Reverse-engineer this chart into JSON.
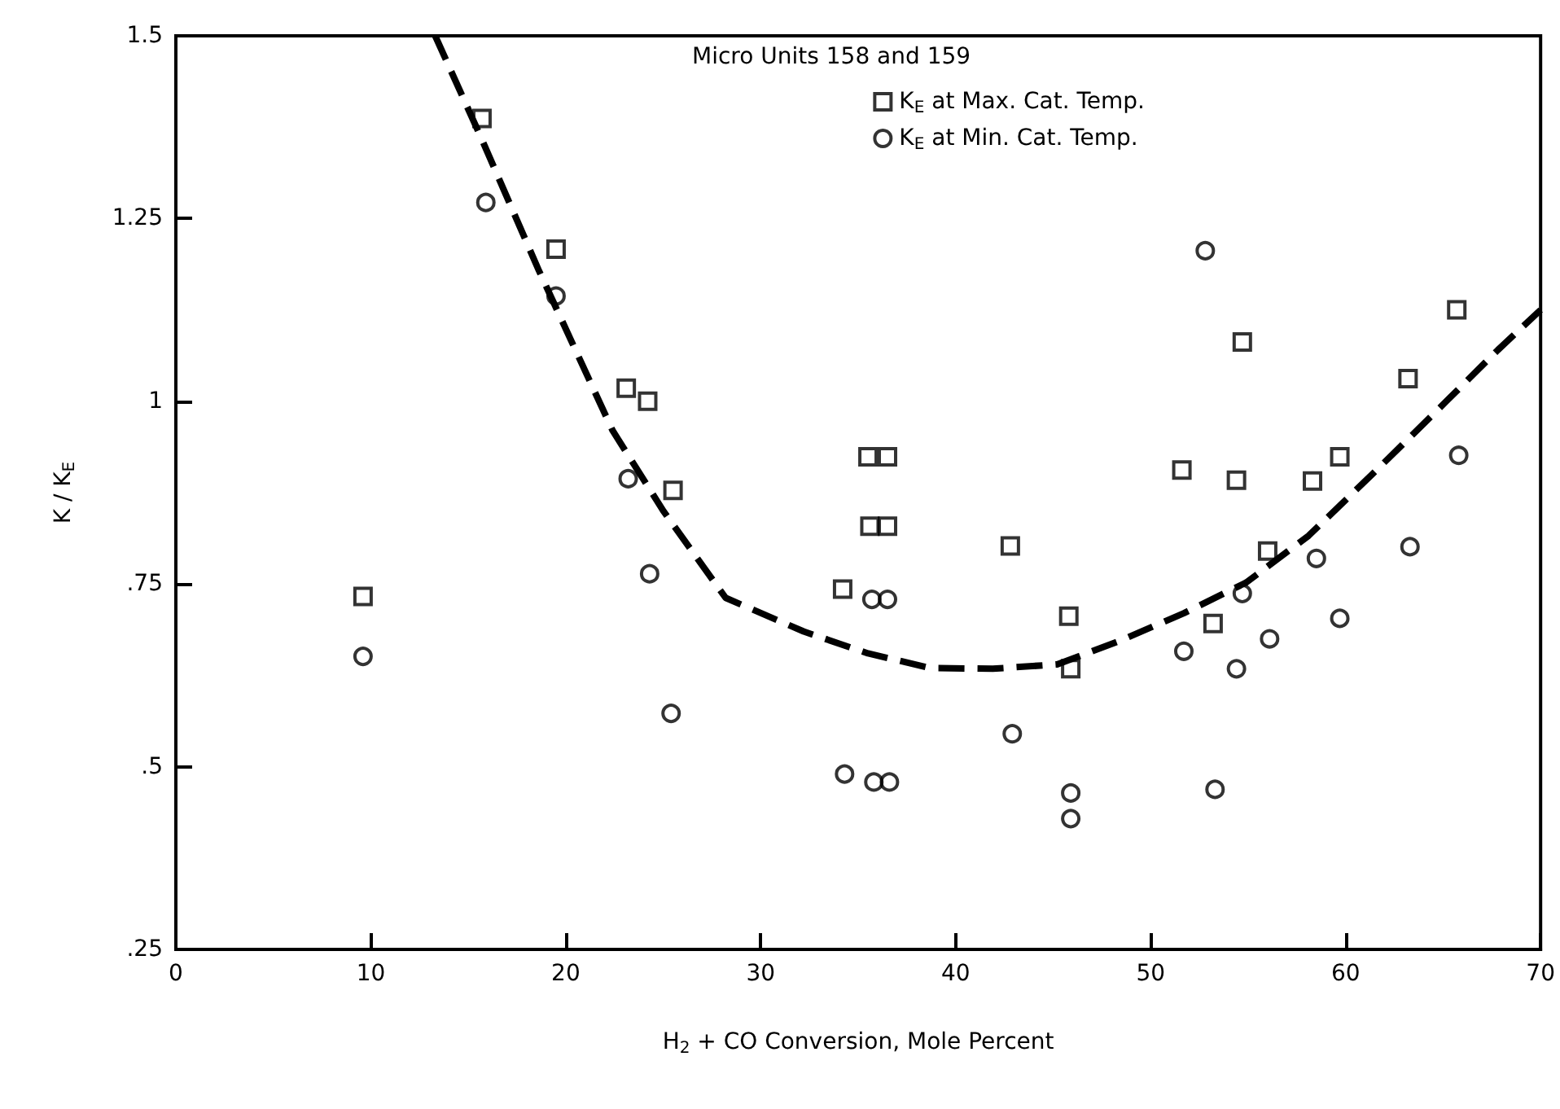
{
  "chart_data": {
    "type": "scatter",
    "xlabel": "H$_{2}$ + CO Conversion, Mole Percent",
    "ylabel": "K / K$_{E}$",
    "legend_title": "Micro Units 158 and 159",
    "xlim": [
      0,
      70
    ],
    "xticks": [
      0,
      10,
      20,
      30,
      40,
      50,
      60,
      70
    ],
    "ylim": [
      0.25,
      1.5
    ],
    "yticks": [
      {
        "value": 0.25,
        "label": ".25"
      },
      {
        "value": 0.5,
        "label": ".5"
      },
      {
        "value": 0.75,
        "label": ".75"
      },
      1,
      1.25,
      1.5
    ],
    "grid": false,
    "legend": "top right",
    "series": [
      {
        "name": "K$_{E}$ at Max. Cat. Temp.",
        "marker": "square",
        "color": "#000000",
        "x": [
          9.6,
          15.7,
          19.5,
          23.1,
          24.2,
          25.5,
          34.2,
          35.5,
          36.5,
          35.6,
          36.5,
          42.8,
          45.8,
          45.9,
          51.6,
          54.7,
          54.4,
          53.2,
          56.0,
          58.3,
          59.7,
          63.2,
          65.7
        ],
        "values": [
          0.733,
          1.387,
          1.208,
          1.018,
          1.0,
          0.878,
          0.743,
          0.924,
          0.924,
          0.829,
          0.829,
          0.802,
          0.706,
          0.634,
          0.906,
          1.081,
          0.892,
          0.696,
          0.795,
          0.891,
          0.924,
          1.031,
          1.125
        ]
      },
      {
        "name": "K$_{E}$ at Min. Cat. Temp.",
        "marker": "circle",
        "color": "#000000",
        "x": [
          9.6,
          15.9,
          19.5,
          23.2,
          24.3,
          25.4,
          34.3,
          35.7,
          36.5,
          35.8,
          36.6,
          42.9,
          45.9,
          45.9,
          51.7,
          52.8,
          53.3,
          54.4,
          54.7,
          56.1,
          58.5,
          59.7,
          63.3,
          65.8
        ],
        "values": [
          0.651,
          1.272,
          1.144,
          0.894,
          0.764,
          0.573,
          0.49,
          0.729,
          0.729,
          0.479,
          0.479,
          0.545,
          0.464,
          0.429,
          0.658,
          1.206,
          0.469,
          0.634,
          0.737,
          0.675,
          0.785,
          0.703,
          0.801,
          0.926
        ]
      },
      {
        "type": "line",
        "marker": "none",
        "line_style": "dashed",
        "color": "#000000",
        "x": [
          13.3,
          15.7,
          18.6,
          22.4,
          25.0,
          28.2,
          32.2,
          35.5,
          38.7,
          41.9,
          45.2,
          48.4,
          51.7,
          54.9,
          58.1,
          61.4,
          64.6,
          67.8,
          70
        ],
        "values": [
          1.5,
          1.358,
          1.18,
          0.96,
          0.85,
          0.731,
          0.685,
          0.655,
          0.635,
          0.634,
          0.64,
          0.672,
          0.71,
          0.752,
          0.816,
          0.901,
          0.985,
          1.07,
          1.125
        ]
      }
    ]
  }
}
